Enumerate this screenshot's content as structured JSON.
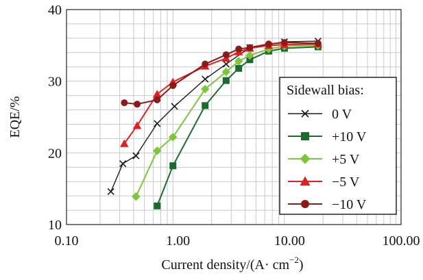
{
  "chart_data": {
    "type": "line",
    "xscale": "log",
    "xlim": [
      0.1,
      100
    ],
    "ylim": [
      10,
      40
    ],
    "xlabel": "Current density/(A· cm",
    "xlabel_superscript": "−2",
    "xlabel_suffix": ")",
    "ylabel": "EQE/%",
    "grid": true,
    "legend_title": "Sidewall bias:",
    "legend_position": "right",
    "xticks": [
      {
        "value": 0.1,
        "label": "0.10"
      },
      {
        "value": 1,
        "label": "1.00"
      },
      {
        "value": 10,
        "label": "10.00"
      },
      {
        "value": 100,
        "label": "100.00"
      }
    ],
    "yticks": [
      {
        "value": 10,
        "label": "10"
      },
      {
        "value": 20,
        "label": "20"
      },
      {
        "value": 30,
        "label": "30"
      },
      {
        "value": 40,
        "label": "40"
      }
    ],
    "series": [
      {
        "name": "0 V",
        "color": "#1a1a1a",
        "marker": "x",
        "x": [
          0.25,
          0.32,
          0.42,
          0.65,
          0.93,
          1.75,
          2.7,
          4.4,
          9.0,
          18
        ],
        "y": [
          14.6,
          18.5,
          19.6,
          24.1,
          26.5,
          30.3,
          32.4,
          34.7,
          35.5,
          35.6
        ]
      },
      {
        "name": "+10 V",
        "color": "#1b6b2f",
        "marker": "square",
        "x": [
          0.65,
          0.9,
          1.75,
          2.7,
          3.5,
          4.4,
          6.5,
          9.0,
          18
        ],
        "y": [
          12.6,
          18.2,
          26.6,
          30.1,
          31.8,
          33.0,
          34.2,
          34.6,
          34.8
        ]
      },
      {
        "name": "+5 V",
        "color": "#7dc63b",
        "marker": "diamond",
        "x": [
          0.42,
          0.65,
          0.9,
          1.75,
          2.7,
          3.5,
          4.4,
          6.5,
          9.0,
          18
        ],
        "y": [
          13.9,
          20.3,
          22.2,
          28.9,
          31.3,
          32.8,
          33.6,
          34.5,
          34.9,
          35.0
        ]
      },
      {
        "name": "−5 V",
        "color": "#e02020",
        "marker": "triangle",
        "x": [
          0.33,
          0.43,
          0.65,
          0.9,
          1.75,
          2.7,
          3.5,
          4.4,
          6.5,
          9.0,
          18
        ],
        "y": [
          21.3,
          23.8,
          28.2,
          29.9,
          32.1,
          33.2,
          34.1,
          34.6,
          35.0,
          35.1,
          35.2
        ]
      },
      {
        "name": "−10 V",
        "color": "#8b1a1a",
        "marker": "circle",
        "x": [
          0.33,
          0.43,
          0.65,
          0.9,
          1.75,
          2.7,
          3.5,
          4.4,
          6.5,
          9.0,
          18
        ],
        "y": [
          27.0,
          26.8,
          27.4,
          29.4,
          32.4,
          33.7,
          34.5,
          34.7,
          35.2,
          35.4,
          35.3
        ]
      }
    ]
  }
}
